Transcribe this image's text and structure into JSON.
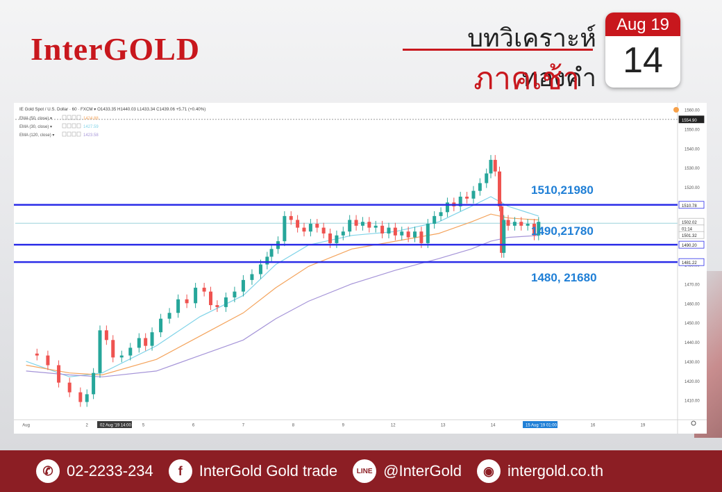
{
  "header": {
    "logo": "InterGOLD",
    "title": "บทวิเคราะห์ทองคำ",
    "subtitle": "ภาคเช้า",
    "calendar_month": "Aug 19",
    "calendar_day": "14"
  },
  "colors": {
    "brand_red": "#c8171d",
    "footer_bg": "#8c1e24",
    "line_blue": "#2a2ce8",
    "label_blue": "#1f7fd6"
  },
  "chart_data": {
    "type": "line",
    "info_line": "IE Gold Spot / U.S. Dollar · 60 · FXCM ▾  O1433.35  H1440.03  L1433.34  C1439.06  +5.71 (+0.40%)",
    "indicators": [
      {
        "label": "EMA (50, close)",
        "value": "1424.88",
        "color": "#f4a35b"
      },
      {
        "label": "EMA (30, close)",
        "value": "1427.59",
        "color": "#7fd3e8"
      },
      {
        "label": "EMA (120, close)",
        "value": "1423.58",
        "color": "#a594d8"
      }
    ],
    "y_ticks": [
      "1560.00",
      "1550.00",
      "1540.00",
      "1530.00",
      "1520.00",
      "1510.00",
      "1500.00",
      "1490.00",
      "1480.00",
      "1470.00",
      "1460.00",
      "1450.00",
      "1440.00",
      "1430.00",
      "1420.00",
      "1410.00"
    ],
    "ylim": [
      1402,
      1562
    ],
    "x_ticks": [
      {
        "label": "Aug",
        "t": 0
      },
      {
        "label": "2",
        "t": 28
      },
      {
        "label": "02 Aug '19  14:00",
        "t": 34
      },
      {
        "label": "5",
        "t": 54
      },
      {
        "label": "6",
        "t": 77
      },
      {
        "label": "7",
        "t": 100
      },
      {
        "label": "8",
        "t": 123
      },
      {
        "label": "9",
        "t": 146
      },
      {
        "label": "12",
        "t": 169
      },
      {
        "label": "13",
        "t": 192
      },
      {
        "label": "14",
        "t": 215
      },
      {
        "label": "15 Aug '19  01:00",
        "t": 230
      },
      {
        "label": "16",
        "t": 261
      },
      {
        "label": "19",
        "t": 284
      }
    ],
    "xlim": [
      -5,
      300
    ],
    "price_badges": [
      {
        "label": "1554.90",
        "value": 1554.9,
        "style": "dark"
      },
      {
        "label": "1510.78",
        "value": 1510.78,
        "style": "blue"
      },
      {
        "label": "1502.02",
        "value": 1502.02,
        "style": "light"
      },
      {
        "label": "01:14",
        "value": 1498.6,
        "style": "light"
      },
      {
        "label": "1501.32",
        "value": 1495.2,
        "style": "light"
      },
      {
        "label": "1490.20",
        "value": 1490.2,
        "style": "blue"
      },
      {
        "label": "1481.22",
        "value": 1481.22,
        "style": "blue"
      }
    ],
    "levels": [
      {
        "value": 1510.78,
        "label": "1510,21980"
      },
      {
        "value": 1490.2,
        "label": "1490,21780"
      },
      {
        "value": 1481.22,
        "label": "1480, 21680"
      }
    ],
    "dotted_level": 1554.9,
    "grey_level": 1501.3,
    "close": [
      [
        0,
        1434
      ],
      [
        5,
        1433
      ],
      [
        10,
        1428
      ],
      [
        15,
        1419
      ],
      [
        20,
        1414
      ],
      [
        25,
        1409
      ],
      [
        28,
        1413
      ],
      [
        31,
        1424
      ],
      [
        34,
        1446
      ],
      [
        37,
        1441
      ],
      [
        40,
        1432
      ],
      [
        44,
        1433
      ],
      [
        48,
        1437
      ],
      [
        52,
        1442
      ],
      [
        55,
        1438
      ],
      [
        58,
        1445
      ],
      [
        62,
        1452
      ],
      [
        66,
        1455
      ],
      [
        70,
        1462
      ],
      [
        74,
        1460
      ],
      [
        78,
        1468
      ],
      [
        82,
        1466
      ],
      [
        85,
        1459
      ],
      [
        88,
        1458
      ],
      [
        92,
        1463
      ],
      [
        96,
        1466
      ],
      [
        100,
        1472
      ],
      [
        104,
        1475
      ],
      [
        108,
        1480
      ],
      [
        111,
        1484
      ],
      [
        113,
        1488
      ],
      [
        116,
        1492
      ],
      [
        119,
        1505
      ],
      [
        122,
        1503
      ],
      [
        125,
        1499
      ],
      [
        128,
        1497
      ],
      [
        131,
        1501
      ],
      [
        134,
        1499
      ],
      [
        137,
        1496
      ],
      [
        140,
        1491
      ],
      [
        143,
        1495
      ],
      [
        146,
        1497
      ],
      [
        149,
        1503
      ],
      [
        152,
        1500
      ],
      [
        155,
        1502
      ],
      [
        158,
        1499
      ],
      [
        161,
        1500
      ],
      [
        164,
        1496
      ],
      [
        167,
        1499
      ],
      [
        170,
        1495
      ],
      [
        173,
        1497
      ],
      [
        176,
        1494
      ],
      [
        179,
        1497
      ],
      [
        182,
        1491
      ],
      [
        185,
        1501
      ],
      [
        188,
        1505
      ],
      [
        191,
        1507
      ],
      [
        194,
        1512
      ],
      [
        197,
        1510
      ],
      [
        200,
        1515
      ],
      [
        203,
        1514
      ],
      [
        206,
        1518
      ],
      [
        209,
        1522
      ],
      [
        212,
        1527
      ],
      [
        214,
        1534
      ],
      [
        216,
        1528
      ],
      [
        218,
        1510
      ],
      [
        219,
        1486
      ],
      [
        220,
        1503
      ],
      [
        222,
        1500
      ],
      [
        225,
        1502
      ],
      [
        228,
        1500
      ],
      [
        231,
        1501
      ],
      [
        234,
        1495
      ],
      [
        236,
        1502
      ]
    ],
    "series": [
      {
        "name": "EMA (30, close)",
        "color": "#7fd3e8",
        "values": [
          [
            0,
            1430
          ],
          [
            20,
            1422
          ],
          [
            35,
            1424
          ],
          [
            60,
            1438
          ],
          [
            80,
            1453
          ],
          [
            100,
            1464
          ],
          [
            115,
            1480
          ],
          [
            130,
            1490
          ],
          [
            150,
            1495
          ],
          [
            170,
            1497
          ],
          [
            190,
            1502
          ],
          [
            205,
            1510
          ],
          [
            214,
            1515
          ],
          [
            222,
            1510
          ],
          [
            236,
            1505
          ]
        ]
      },
      {
        "name": "EMA (50, close)",
        "color": "#f4a35b",
        "values": [
          [
            0,
            1428
          ],
          [
            20,
            1424
          ],
          [
            35,
            1423
          ],
          [
            60,
            1431
          ],
          [
            80,
            1443
          ],
          [
            100,
            1455
          ],
          [
            115,
            1468
          ],
          [
            130,
            1479
          ],
          [
            150,
            1488
          ],
          [
            170,
            1492
          ],
          [
            190,
            1496
          ],
          [
            205,
            1502
          ],
          [
            214,
            1506
          ],
          [
            222,
            1504
          ],
          [
            236,
            1503
          ]
        ]
      },
      {
        "name": "EMA (120, close)",
        "color": "#a594d8",
        "values": [
          [
            0,
            1425
          ],
          [
            20,
            1423
          ],
          [
            35,
            1422
          ],
          [
            60,
            1425
          ],
          [
            80,
            1433
          ],
          [
            100,
            1441
          ],
          [
            115,
            1452
          ],
          [
            130,
            1461
          ],
          [
            150,
            1470
          ],
          [
            170,
            1477
          ],
          [
            190,
            1483
          ],
          [
            205,
            1488
          ],
          [
            214,
            1492
          ],
          [
            222,
            1494
          ],
          [
            236,
            1495
          ]
        ]
      }
    ]
  },
  "footer": {
    "phone": "02-2233-234",
    "facebook": "InterGold Gold trade",
    "line": "@InterGold",
    "website": "intergold.co.th",
    "icons": [
      "phone-icon",
      "facebook-icon",
      "line-icon",
      "globe-icon"
    ]
  }
}
